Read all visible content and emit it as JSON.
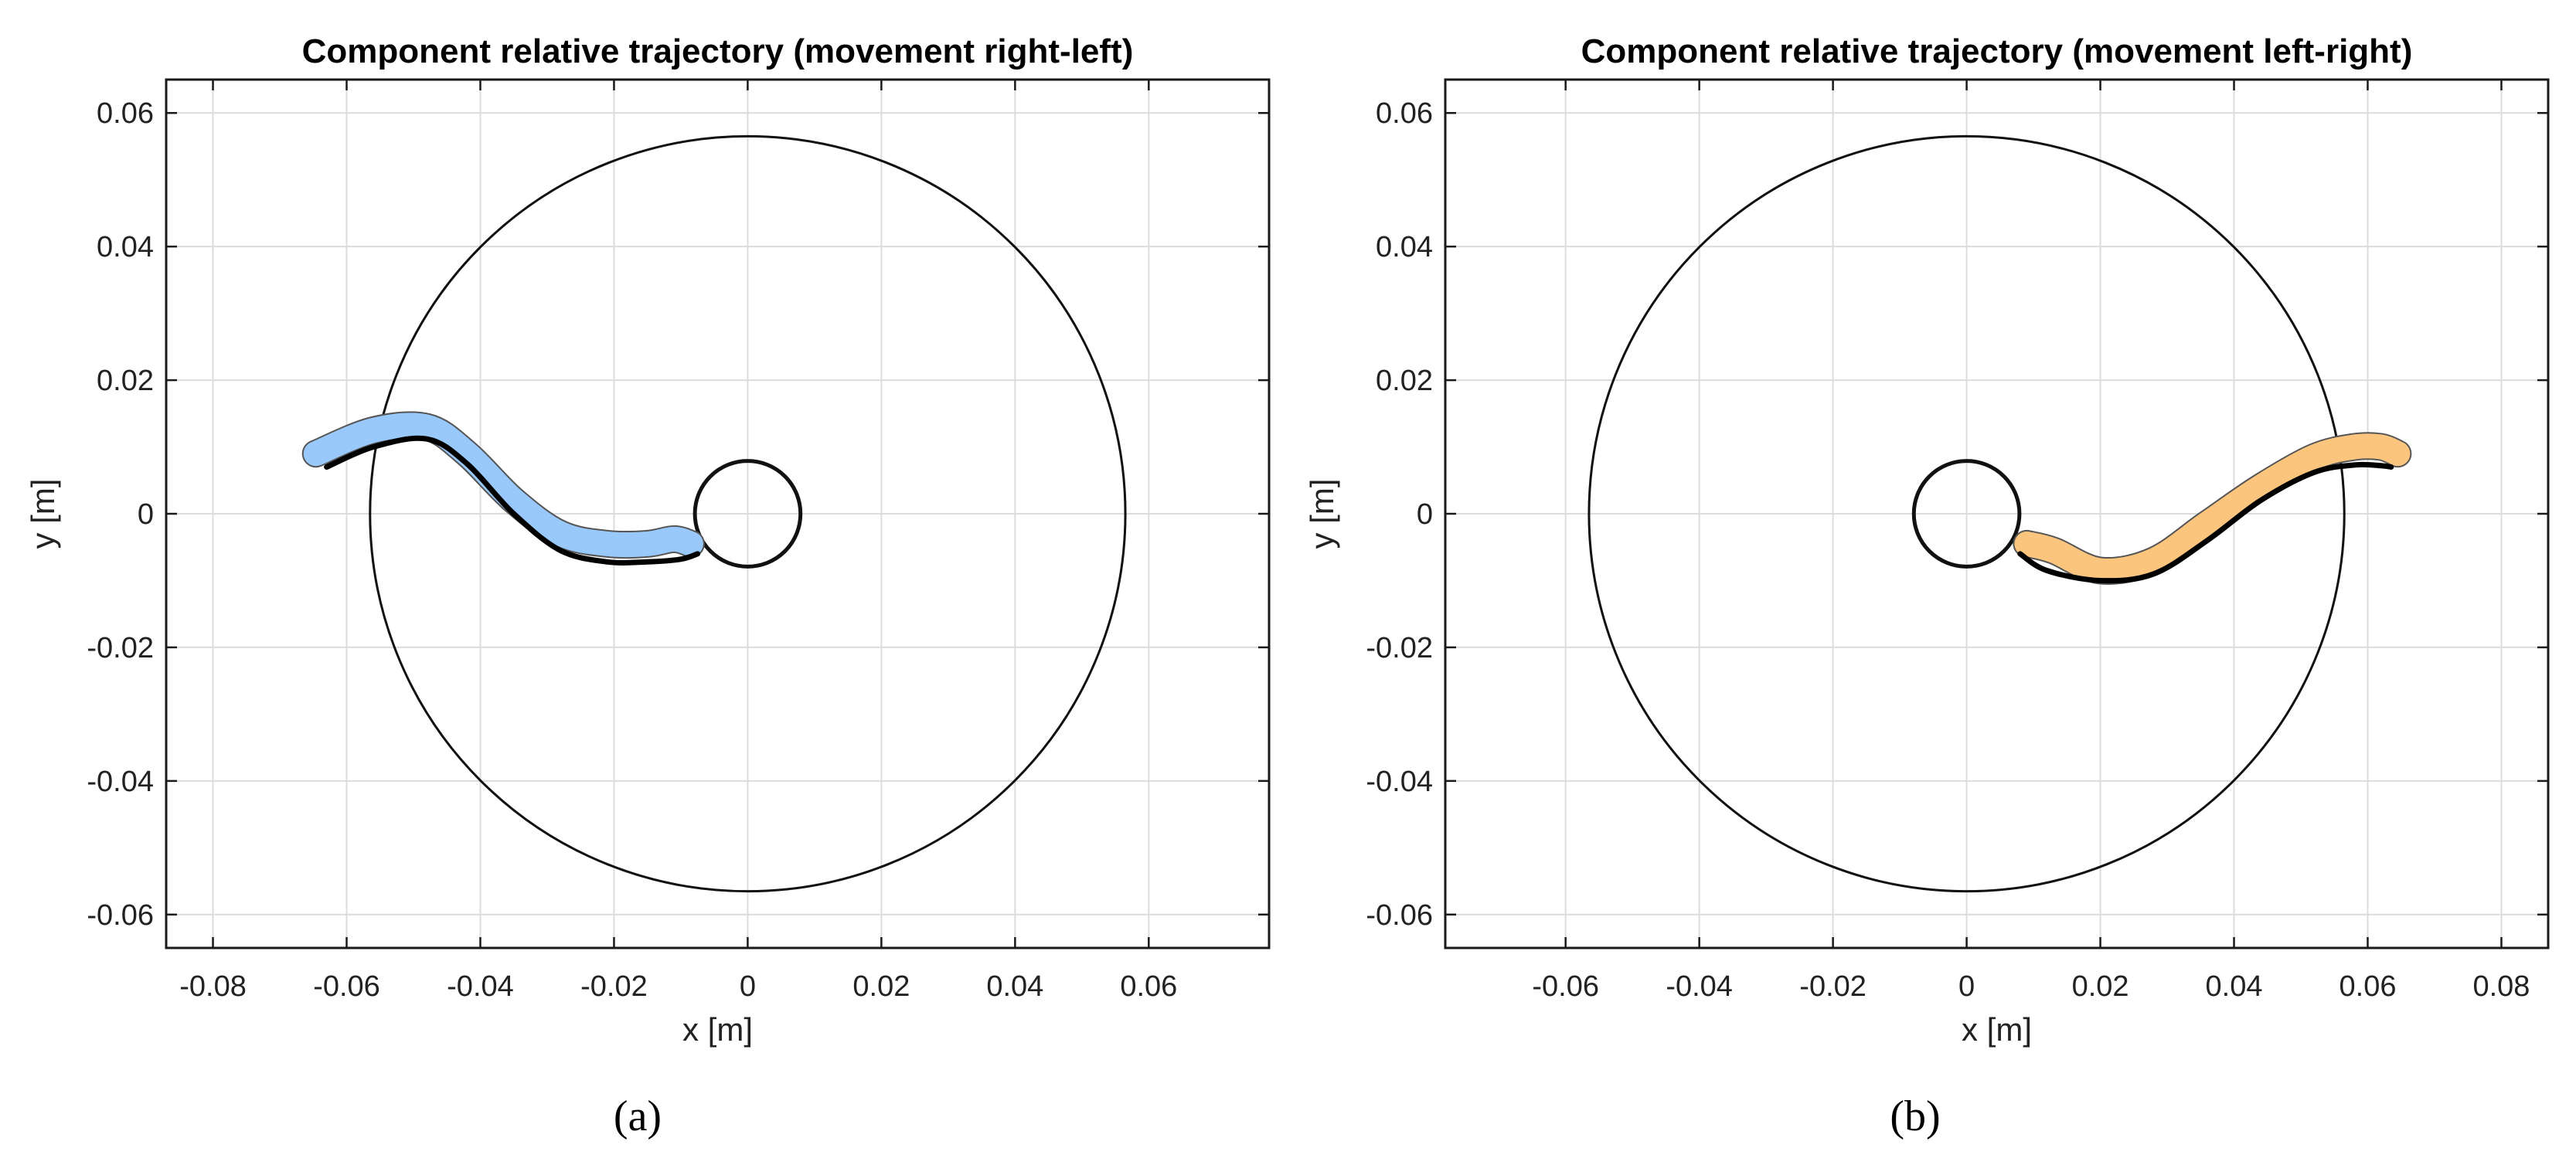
{
  "chart_data": [
    {
      "type": "line",
      "title": "Component relative trajectory (movement right-left)",
      "xlabel": "x [m]",
      "ylabel": "y [m]",
      "caption": "(a)",
      "xlim": [
        -0.087,
        0.078
      ],
      "ylim": [
        -0.065,
        0.065
      ],
      "xticks": [
        -0.08,
        -0.06,
        -0.04,
        -0.02,
        0,
        0.02,
        0.04,
        0.06
      ],
      "xtick_labels": [
        "-0.08",
        "-0.06",
        "-0.04",
        "-0.02",
        "0",
        "0.02",
        "0.04",
        "0.06"
      ],
      "yticks": [
        -0.06,
        -0.04,
        -0.02,
        0,
        0.02,
        0.04,
        0.06
      ],
      "ytick_labels": [
        "-0.06",
        "-0.04",
        "-0.02",
        "0",
        "0.02",
        "0.04",
        "0.06"
      ],
      "grid": true,
      "circles": [
        {
          "cx": 0,
          "cy": 0,
          "r": 0.0565
        },
        {
          "cx": 0,
          "cy": 0,
          "r": 0.0079
        }
      ],
      "band_color": "#99c9fb",
      "band": {
        "x": [
          -0.0646,
          -0.056,
          -0.048,
          -0.042,
          -0.035,
          -0.028,
          -0.021,
          -0.015,
          -0.011,
          -0.0085
        ],
        "y": [
          0.009,
          0.0125,
          0.013,
          0.009,
          0.002,
          -0.003,
          -0.0045,
          -0.0045,
          -0.0038,
          -0.0045
        ]
      },
      "path": {
        "x": [
          -0.063,
          -0.056,
          -0.048,
          -0.042,
          -0.035,
          -0.028,
          -0.021,
          -0.015,
          -0.01,
          -0.0075
        ],
        "y": [
          0.007,
          0.01,
          0.0112,
          0.0075,
          0.0,
          -0.0055,
          -0.0072,
          -0.0072,
          -0.0068,
          -0.006
        ]
      }
    },
    {
      "type": "line",
      "title": "Component relative trajectory (movement left-right)",
      "xlabel": "x [m]",
      "ylabel": "y [m]",
      "caption": "(b)",
      "xlim": [
        -0.078,
        0.087
      ],
      "ylim": [
        -0.065,
        0.065
      ],
      "xticks": [
        -0.06,
        -0.04,
        -0.02,
        0,
        0.02,
        0.04,
        0.06,
        0.08
      ],
      "xtick_labels": [
        "-0.06",
        "-0.04",
        "-0.02",
        "0",
        "0.02",
        "0.04",
        "0.06",
        "0.08"
      ],
      "yticks": [
        -0.06,
        -0.04,
        -0.02,
        0,
        0.02,
        0.04,
        0.06
      ],
      "ytick_labels": [
        "-0.06",
        "-0.04",
        "-0.02",
        "0",
        "0.02",
        "0.04",
        "0.06"
      ],
      "grid": true,
      "circles": [
        {
          "cx": 0,
          "cy": 0,
          "r": 0.0565
        },
        {
          "cx": 0,
          "cy": 0,
          "r": 0.0079
        }
      ],
      "band_color": "#fcc57e",
      "band": {
        "x": [
          0.009,
          0.013,
          0.02,
          0.028,
          0.036,
          0.044,
          0.052,
          0.058,
          0.062,
          0.0645
        ],
        "y": [
          -0.0045,
          -0.0055,
          -0.0085,
          -0.007,
          -0.0015,
          0.004,
          0.0085,
          0.01,
          0.01,
          0.009
        ]
      },
      "path": {
        "x": [
          0.008,
          0.012,
          0.02,
          0.028,
          0.036,
          0.044,
          0.052,
          0.058,
          0.062,
          0.0635
        ],
        "y": [
          -0.006,
          -0.0085,
          -0.01,
          -0.009,
          -0.004,
          0.002,
          0.0062,
          0.0073,
          0.0072,
          0.007
        ]
      }
    }
  ]
}
